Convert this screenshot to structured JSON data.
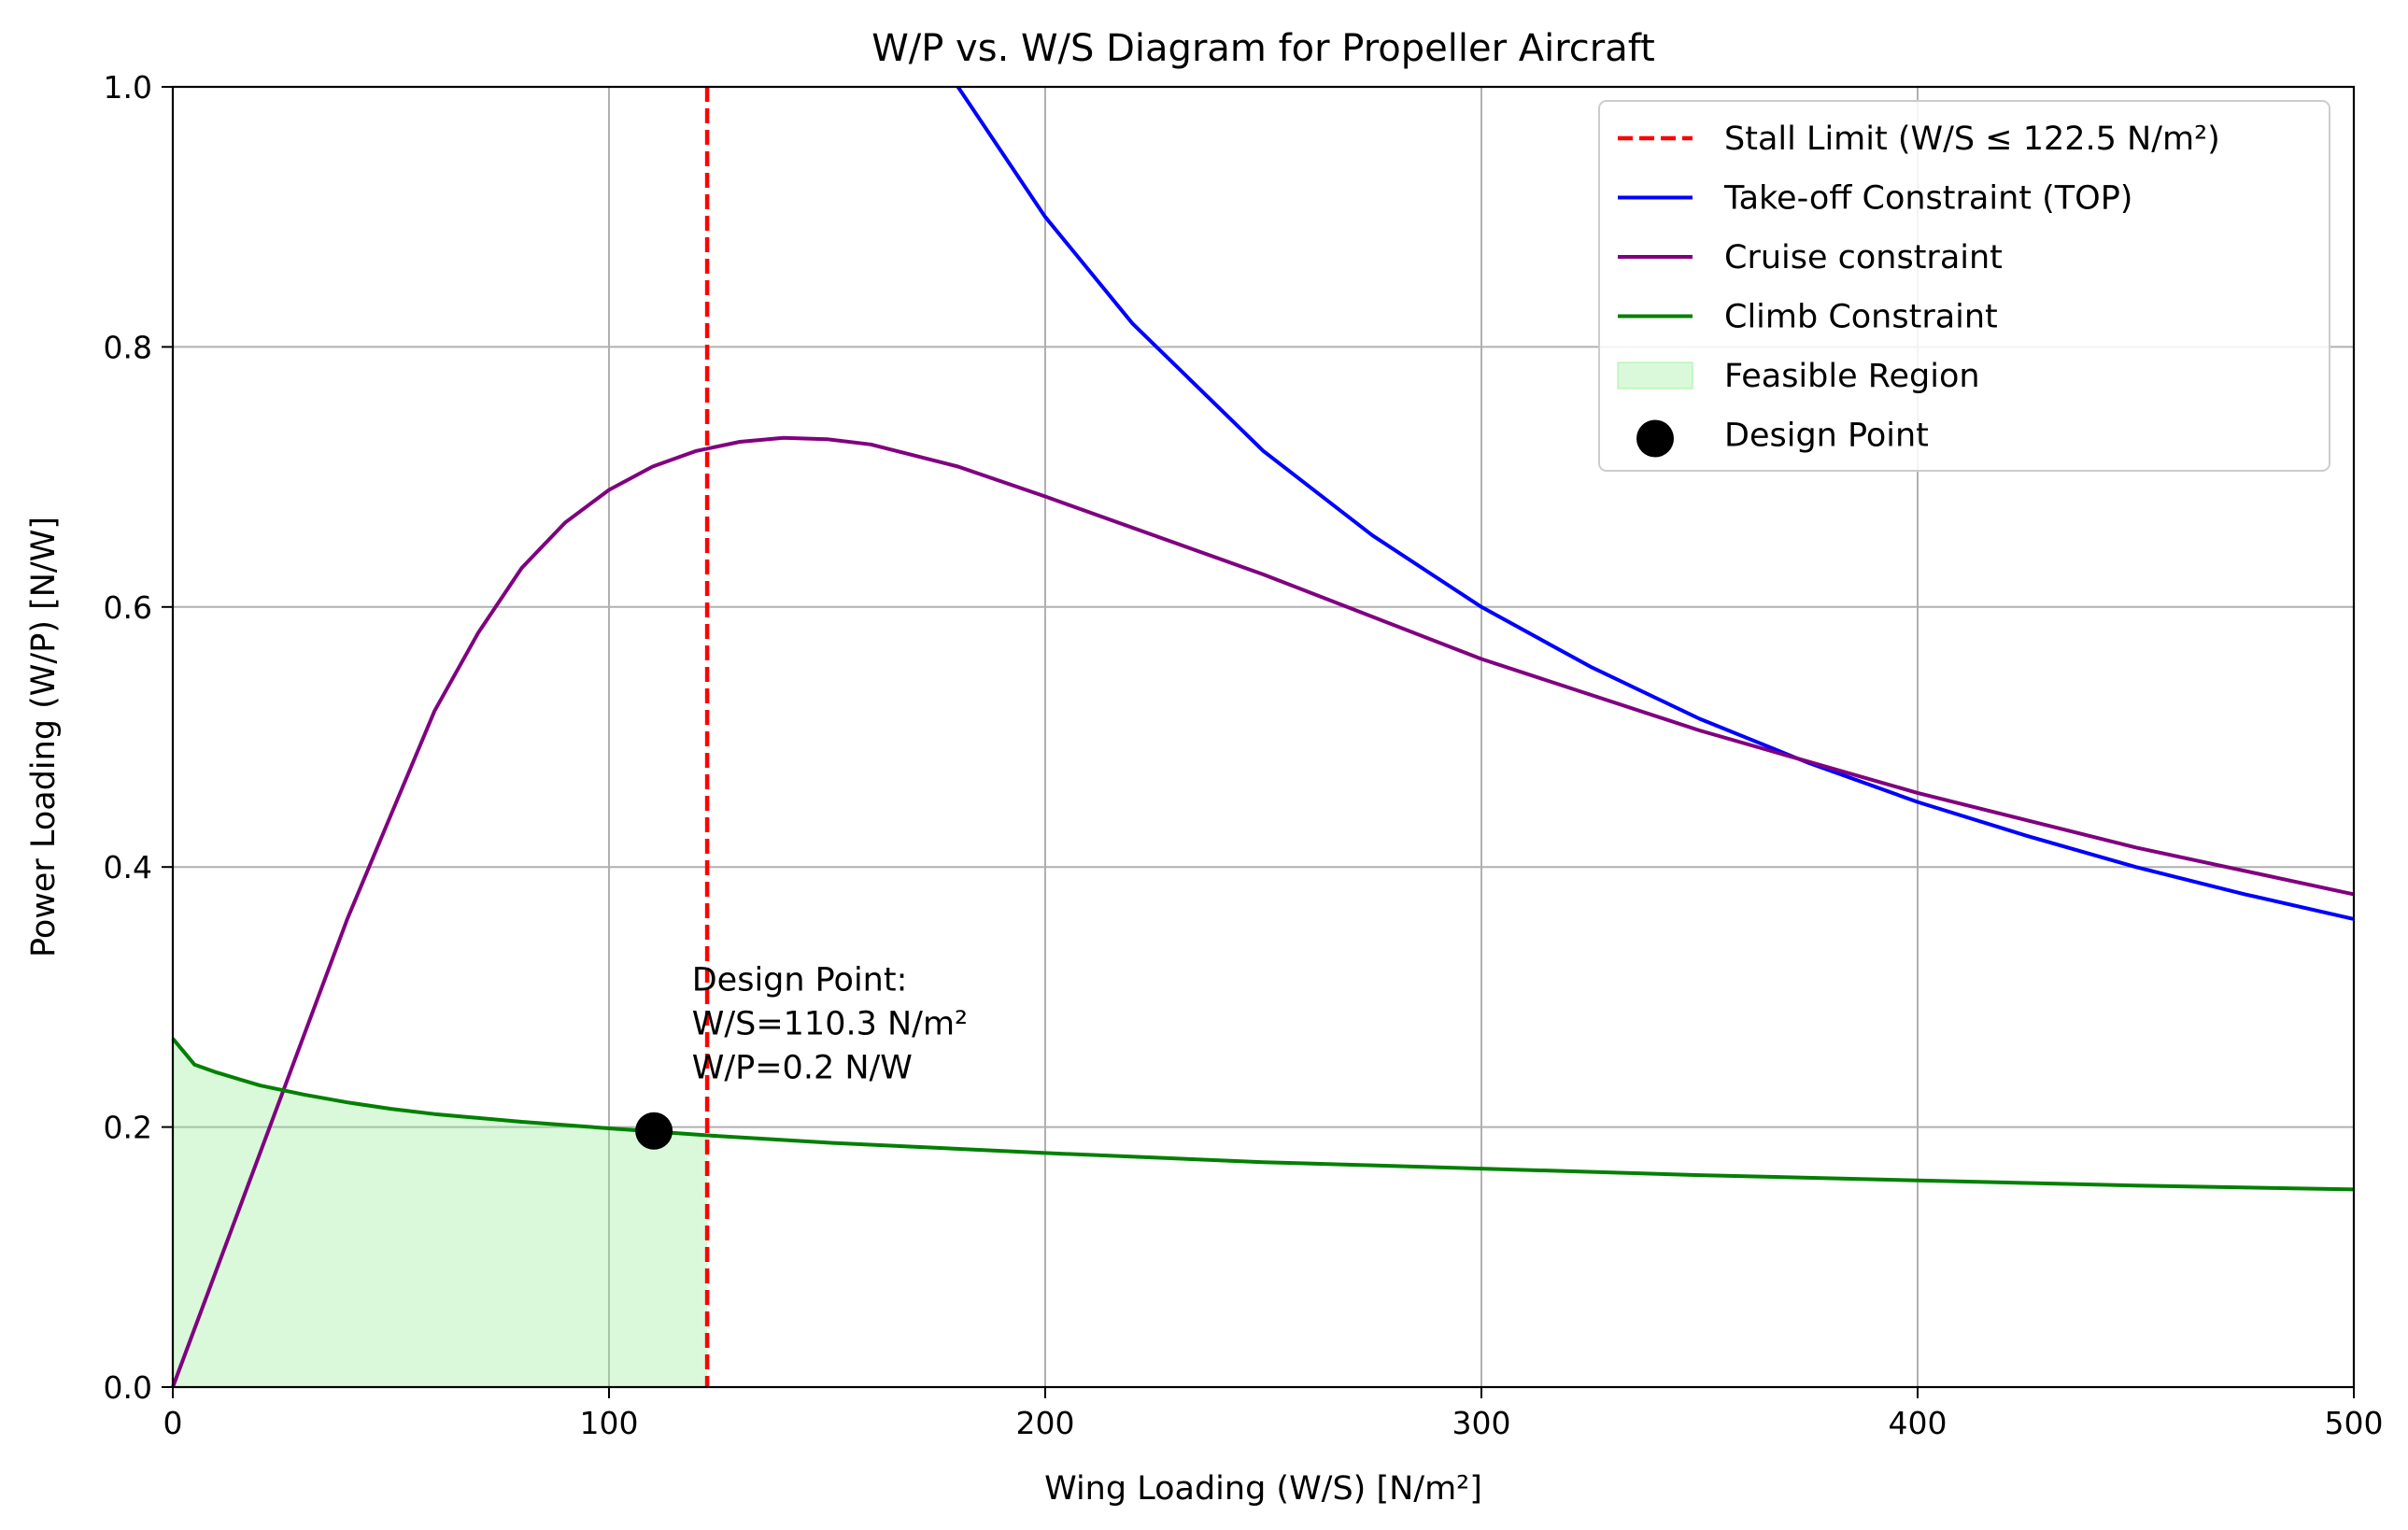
{
  "chart_data": {
    "type": "line",
    "title": "W/P vs. W/S Diagram for Propeller Aircraft",
    "xlabel": "Wing Loading (W/S) [N/m²]",
    "ylabel": "Power Loading (W/P) [N/W]",
    "xlim": [
      0,
      500
    ],
    "ylim": [
      0,
      1.0
    ],
    "grid": true,
    "legend_position": "top-right",
    "x_ticks": [
      0,
      100,
      200,
      300,
      400,
      500
    ],
    "x_tick_labels": [
      "0",
      "100",
      "200",
      "300",
      "400",
      "500"
    ],
    "y_ticks": [
      0,
      0.2,
      0.4,
      0.6,
      0.8,
      1.0
    ],
    "y_tick_labels": [
      "0.0",
      "0.2",
      "0.4",
      "0.6",
      "0.8",
      "1.0"
    ],
    "series": [
      {
        "name": "Stall Limit (W/S ≤ 122.5 N/m²)",
        "kind": "vline",
        "style": "dashed",
        "color": "#ff0000",
        "x_value": 122.5
      },
      {
        "name": "Take-off Constraint (TOP)",
        "kind": "line",
        "color": "#0000ff",
        "x": [
          180,
          200,
          220,
          250,
          275,
          300,
          325,
          350,
          375,
          400,
          425,
          450,
          475,
          500
        ],
        "y": [
          1.0,
          0.9,
          0.818,
          0.72,
          0.655,
          0.6,
          0.554,
          0.514,
          0.48,
          0.45,
          0.424,
          0.4,
          0.379,
          0.36
        ]
      },
      {
        "name": "Cruise constraint",
        "kind": "line",
        "color": "#800080",
        "x": [
          0,
          10,
          20,
          30,
          40,
          50,
          60,
          70,
          80,
          90,
          100,
          110,
          120,
          130,
          140,
          150,
          160,
          180,
          200,
          250,
          300,
          350,
          400,
          450,
          500
        ],
        "y": [
          0.0,
          0.09,
          0.18,
          0.27,
          0.36,
          0.44,
          0.52,
          0.58,
          0.63,
          0.665,
          0.69,
          0.708,
          0.72,
          0.727,
          0.73,
          0.729,
          0.725,
          0.708,
          0.685,
          0.625,
          0.56,
          0.505,
          0.457,
          0.415,
          0.379
        ]
      },
      {
        "name": "Climb Constraint",
        "kind": "line",
        "color": "#008000",
        "x": [
          0,
          5,
          10,
          20,
          30,
          40,
          50,
          60,
          80,
          100,
          125,
          150,
          200,
          250,
          300,
          350,
          400,
          450,
          500
        ],
        "y": [
          0.268,
          0.248,
          0.242,
          0.232,
          0.225,
          0.219,
          0.214,
          0.21,
          0.204,
          0.199,
          0.193,
          0.188,
          0.18,
          0.173,
          0.168,
          0.163,
          0.159,
          0.155,
          0.152
        ]
      },
      {
        "name": "Feasible Region",
        "kind": "fill",
        "color": "#90ee90",
        "x_range": [
          0,
          122.5
        ]
      },
      {
        "name": "Design Point",
        "kind": "scatter",
        "color": "#000000",
        "x": [
          110.3
        ],
        "y": [
          0.197
        ]
      }
    ],
    "annotation": {
      "lines": [
        "Design Point:",
        "W/S=110.3 N/m²",
        "W/P=0.2 N/W"
      ],
      "x": 119,
      "y": 0.305
    }
  }
}
